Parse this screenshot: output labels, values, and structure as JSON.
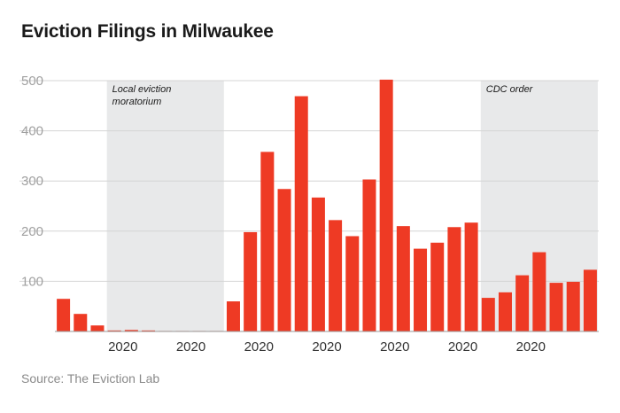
{
  "chart_data": {
    "type": "bar",
    "title": "Eviction Filings in Milwaukee",
    "source": "Source:  The Eviction Lab",
    "bar_color": "#ee3a24",
    "shade_color": "#e8e9ea",
    "grid": true,
    "ylim": [
      0,
      500
    ],
    "yticks": [
      100,
      200,
      300,
      400,
      500
    ],
    "values": [
      65,
      35,
      12,
      2,
      3,
      2,
      1,
      1,
      1,
      1,
      60,
      198,
      358,
      284,
      469,
      267,
      222,
      190,
      303,
      502,
      210,
      165,
      177,
      208,
      217,
      67,
      78,
      112,
      158,
      97,
      99,
      123
    ],
    "x_tick_labels": [
      {
        "index": 3,
        "label": "2020"
      },
      {
        "index": 7,
        "label": "2020"
      },
      {
        "index": 11,
        "label": "2020"
      },
      {
        "index": 15,
        "label": "2020"
      },
      {
        "index": 19,
        "label": "2020"
      },
      {
        "index": 23,
        "label": "2020"
      },
      {
        "index": 27,
        "label": "2020"
      }
    ],
    "shaded_regions": [
      {
        "start_index": 3,
        "end_index": 9,
        "lines": [
          "Local eviction",
          "moratorium"
        ]
      },
      {
        "start_index": 25,
        "end_index": 31,
        "lines": [
          "CDC order"
        ]
      }
    ]
  }
}
